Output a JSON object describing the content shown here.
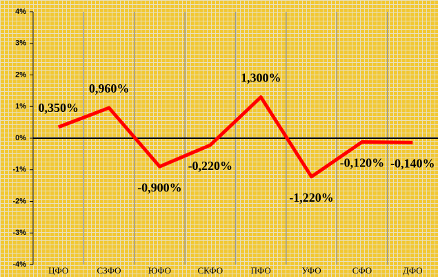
{
  "chart_data": {
    "type": "line",
    "categories": [
      "ЦФО",
      "СЗФО",
      "ЮФО",
      "СКФО",
      "ПФО",
      "УФО",
      "СФО",
      "ДФО"
    ],
    "series": [
      {
        "color": "#ff0000",
        "values": [
          0.35,
          0.96,
          -0.9,
          -0.22,
          1.3,
          -1.22,
          -0.12,
          -0.14
        ],
        "value_labels": [
          "0,350%",
          "0,960%",
          "-0,900%",
          "-0,220%",
          "1,300%",
          "-1,220%",
          "-0,120%",
          "-0,140%"
        ]
      }
    ],
    "ylim": [
      -4,
      4
    ],
    "yticks": [
      {
        "value": -4,
        "label": "-4%"
      },
      {
        "value": -3,
        "label": "-3%"
      },
      {
        "value": -2,
        "label": "-2%"
      },
      {
        "value": -1,
        "label": "-1%"
      },
      {
        "value": 0,
        "label": "0%"
      },
      {
        "value": 1,
        "label": "1%"
      },
      {
        "value": 2,
        "label": "2%"
      },
      {
        "value": 3,
        "label": "3%"
      },
      {
        "value": 4,
        "label": "4%"
      }
    ]
  }
}
